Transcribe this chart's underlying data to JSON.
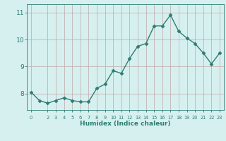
{
  "x": [
    0,
    1,
    2,
    3,
    4,
    5,
    6,
    7,
    8,
    9,
    10,
    11,
    12,
    13,
    14,
    15,
    16,
    17,
    18,
    19,
    20,
    21,
    22,
    23
  ],
  "y": [
    8.05,
    7.75,
    7.65,
    7.75,
    7.85,
    7.75,
    7.7,
    7.7,
    8.2,
    8.35,
    8.85,
    8.75,
    9.3,
    9.75,
    9.85,
    10.5,
    10.5,
    10.9,
    10.3,
    10.05,
    9.85,
    9.5,
    9.1,
    9.5
  ],
  "line_color": "#2e7d72",
  "bg_color": "#d6f0ef",
  "grid_color": "#c0a8a8",
  "tick_color": "#2e7d72",
  "label_color": "#2e7d72",
  "xlabel": "Humidex (Indice chaleur)",
  "ylim": [
    7.4,
    11.3
  ],
  "xlim": [
    -0.5,
    23.5
  ],
  "yticks": [
    8,
    9,
    10,
    11
  ],
  "xticks": [
    0,
    2,
    3,
    4,
    5,
    6,
    7,
    8,
    9,
    10,
    11,
    12,
    13,
    14,
    15,
    16,
    17,
    18,
    19,
    20,
    21,
    22,
    23
  ],
  "xtick_labels": [
    "0",
    "2",
    "3",
    "4",
    "5",
    "6",
    "7",
    "8",
    "9",
    "10",
    "11",
    "12",
    "13",
    "14",
    "15",
    "16",
    "17",
    "18",
    "19",
    "20",
    "21",
    "22",
    "23"
  ],
  "marker": "D",
  "marker_size": 2.5,
  "line_width": 1.0
}
